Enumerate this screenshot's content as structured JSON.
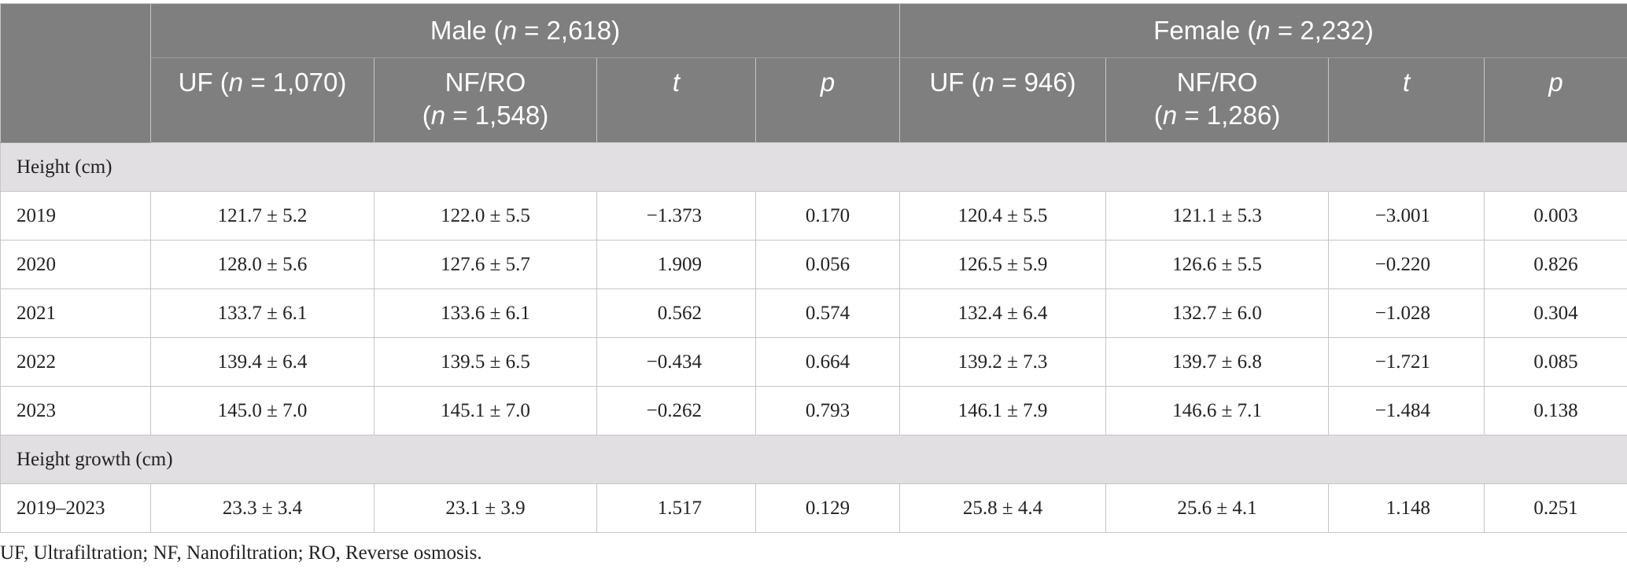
{
  "header": {
    "groups": [
      [
        {
          "text": "Male ("
        },
        {
          "text": "n",
          "italic": true
        },
        {
          "text": " = 2,618)"
        }
      ],
      [
        {
          "text": "Female ("
        },
        {
          "text": "n",
          "italic": true
        },
        {
          "text": " = 2,232)"
        }
      ]
    ],
    "columns": [
      [
        [
          {
            "text": "UF ("
          },
          {
            "text": "n",
            "italic": true
          },
          {
            "text": " = 1,070)"
          }
        ]
      ],
      [
        [
          {
            "text": "NF/RO"
          }
        ],
        [
          {
            "text": "("
          },
          {
            "text": "n",
            "italic": true
          },
          {
            "text": " = 1,548)"
          }
        ]
      ],
      [
        [
          {
            "text": "t",
            "italic": true
          }
        ]
      ],
      [
        [
          {
            "text": "p",
            "italic": true
          }
        ]
      ],
      [
        [
          {
            "text": "UF ("
          },
          {
            "text": "n",
            "italic": true
          },
          {
            "text": " = 946)"
          }
        ]
      ],
      [
        [
          {
            "text": "NF/RO"
          }
        ],
        [
          {
            "text": "("
          },
          {
            "text": "n",
            "italic": true
          },
          {
            "text": " = 1,286)"
          }
        ]
      ],
      [
        [
          {
            "text": "t",
            "italic": true
          }
        ]
      ],
      [
        [
          {
            "text": "p",
            "italic": true
          }
        ]
      ]
    ]
  },
  "sections": [
    {
      "title": "Height (cm)",
      "rows": [
        [
          "2019",
          "121.7 ± 5.2",
          "122.0 ± 5.5",
          "−1.373",
          "0.170",
          "120.4 ± 5.5",
          "121.1 ± 5.3",
          "−3.001",
          "0.003"
        ],
        [
          "2020",
          "128.0 ± 5.6",
          "127.6 ± 5.7",
          "1.909",
          "0.056",
          "126.5 ± 5.9",
          "126.6 ± 5.5",
          "−0.220",
          "0.826"
        ],
        [
          "2021",
          "133.7 ± 6.1",
          "133.6 ± 6.1",
          "0.562",
          "0.574",
          "132.4 ± 6.4",
          "132.7 ± 6.0",
          "−1.028",
          "0.304"
        ],
        [
          "2022",
          "139.4 ± 6.4",
          "139.5 ± 6.5",
          "−0.434",
          "0.664",
          "139.2 ± 7.3",
          "139.7 ± 6.8",
          "−1.721",
          "0.085"
        ],
        [
          "2023",
          "145.0 ± 7.0",
          "145.1 ± 7.0",
          "−0.262",
          "0.793",
          "146.1 ± 7.9",
          "146.6 ± 7.1",
          "−1.484",
          "0.138"
        ]
      ]
    },
    {
      "title": "Height growth (cm)",
      "rows": [
        [
          "2019–2023",
          "23.3 ± 3.4",
          "23.1 ± 3.9",
          "1.517",
          "0.129",
          "25.8 ± 4.4",
          "25.6 ± 4.1",
          "1.148",
          "0.251"
        ]
      ]
    }
  ],
  "footnote": "UF, Ultrafiltration; NF, Nanofiltration; RO, Reverse osmosis."
}
